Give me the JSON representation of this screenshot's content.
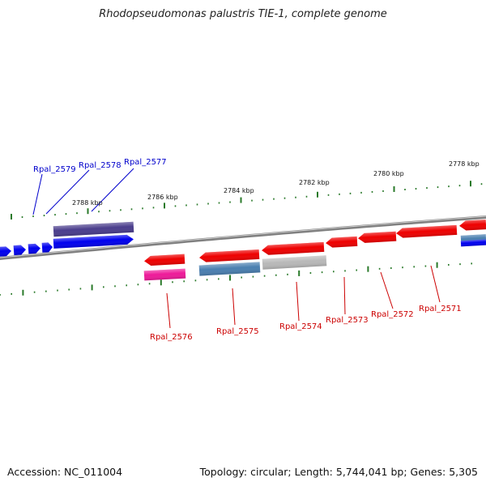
{
  "title": "Rhodopseudomonas palustris TIE-1, complete genome",
  "footer": {
    "accession": "Accession: NC_011004",
    "summary": "Topology: circular; Length: 5,744,041 bp; Genes: 5,305"
  },
  "colors": {
    "backbone": "#808080",
    "tick": "#2a7a2a",
    "label_top": "#0000cc",
    "label_bottom": "#cc0000",
    "gene_blue": "#0000ee",
    "gene_red": "#ee0000",
    "gene_purple": "#4a3d8c",
    "gene_steel": "#4a7fb0",
    "gene_gray": "#b8b8b8",
    "gene_pink": "#ee1a99"
  },
  "scale_labels": [
    "2788 kbp",
    "2786 kbp",
    "2784 kbp",
    "2782 kbp",
    "2780 kbp",
    "2778 kbp"
  ],
  "top_labels": [
    "Rpal_2579",
    "Rpal_2578",
    "Rpal_2577"
  ],
  "bottom_labels": [
    "Rpal_2576",
    "Rpal_2575",
    "Rpal_2574",
    "Rpal_2573",
    "Rpal_2572",
    "Rpal_2571"
  ]
}
